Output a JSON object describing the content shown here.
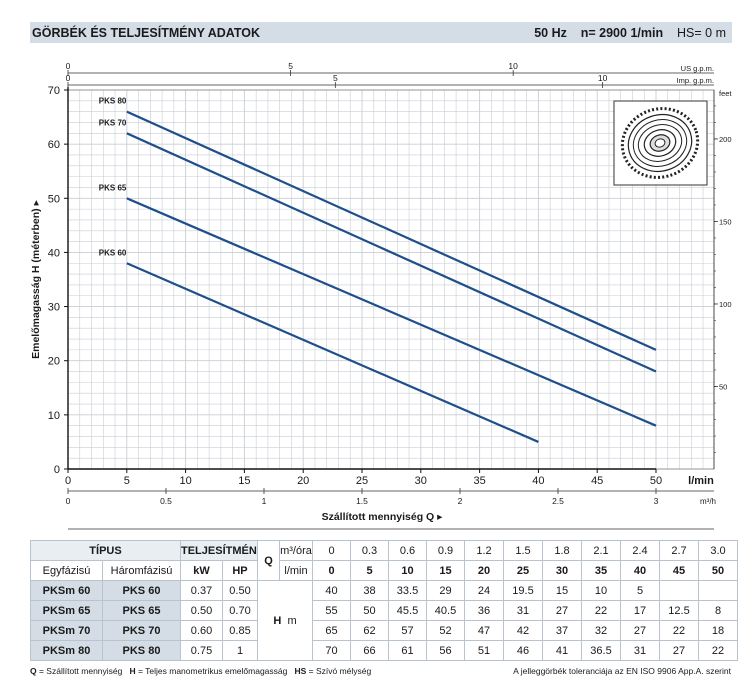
{
  "header": {
    "title": "GÖRBÉK ÉS TELJESÍTMÉNY ADATOK",
    "freq": "50 Hz",
    "speed": "n= 2900",
    "speed_unit": "1/min",
    "hs": "HS= 0 m"
  },
  "chart_data": {
    "type": "line",
    "xlabel": "Szállított mennyiség  Q",
    "ylabel": "Emelőmagasság  H  (méterben)",
    "x_unit_lmin": "l/min",
    "x_unit_m3h": "m³/h",
    "y_right_unit": "feet",
    "top_axis_us": "US g.p.m.",
    "top_axis_imp": "Imp. g.p.m.",
    "xlim": [
      0,
      50
    ],
    "ylim": [
      0,
      70
    ],
    "x_ticks_lmin": [
      0,
      5,
      10,
      15,
      20,
      25,
      30,
      35,
      40,
      45,
      50
    ],
    "y_ticks": [
      0,
      10,
      20,
      30,
      40,
      50,
      60,
      70
    ],
    "x_ticks_m3h": [
      "0",
      "0.5",
      "1",
      "1.5",
      "2",
      "2.5",
      "3"
    ],
    "us_gpm_ticks": [
      "0",
      "5",
      "10"
    ],
    "imp_gpm_ticks": [
      "0",
      "5",
      "10"
    ],
    "feet_ticks": [
      "50",
      "100",
      "150",
      "200"
    ],
    "series": [
      {
        "name": "PKS 80",
        "x": [
          5,
          50
        ],
        "y": [
          66,
          22
        ]
      },
      {
        "name": "PKS 70",
        "x": [
          5,
          50
        ],
        "y": [
          62,
          18
        ]
      },
      {
        "name": "PKS 65",
        "x": [
          5,
          50
        ],
        "y": [
          50,
          8
        ]
      },
      {
        "name": "PKS 60",
        "x": [
          5,
          40
        ],
        "y": [
          38,
          5
        ]
      }
    ],
    "grid": true
  },
  "colors": {
    "line": "#1e4f8a",
    "header_bg": "#d4dde6",
    "grid": "#c9ced4"
  },
  "impeller_icon": "peripheral-impeller-icon",
  "table": {
    "h_tipus": "TÍPUS",
    "h_teljesitmeny": "TELJESÍTMÉNY",
    "h_q": "Q",
    "h_m3ora": "m³/óra",
    "h_lmin": "l/min",
    "h_egyfazisu": "Egyfázisú",
    "h_haromfazisu": "Háromfázisú",
    "h_kw": "kW",
    "h_hp": "HP",
    "h_hm": "H",
    "h_hm_unit": "m",
    "q_m3": [
      "0",
      "0.3",
      "0.6",
      "0.9",
      "1.2",
      "1.5",
      "1.8",
      "2.1",
      "2.4",
      "2.7",
      "3.0"
    ],
    "q_lmin": [
      "0",
      "5",
      "10",
      "15",
      "20",
      "25",
      "30",
      "35",
      "40",
      "45",
      "50"
    ],
    "rows": [
      {
        "single": "PKSm 60",
        "three": "PKS 60",
        "kw": "0.37",
        "hp": "0.50",
        "h": [
          "40",
          "38",
          "33.5",
          "29",
          "24",
          "19.5",
          "15",
          "10",
          "5",
          "",
          ""
        ]
      },
      {
        "single": "PKSm 65",
        "three": "PKS 65",
        "kw": "0.50",
        "hp": "0.70",
        "h": [
          "55",
          "50",
          "45.5",
          "40.5",
          "36",
          "31",
          "27",
          "22",
          "17",
          "12.5",
          "8"
        ]
      },
      {
        "single": "PKSm 70",
        "three": "PKS 70",
        "kw": "0.60",
        "hp": "0.85",
        "h": [
          "65",
          "62",
          "57",
          "52",
          "47",
          "42",
          "37",
          "32",
          "27",
          "22",
          "18"
        ]
      },
      {
        "single": "PKSm 80",
        "three": "PKS 80",
        "kw": "0.75",
        "hp": "1",
        "h": [
          "70",
          "66",
          "61",
          "56",
          "51",
          "46",
          "41",
          "36.5",
          "31",
          "27",
          "22"
        ]
      }
    ]
  },
  "footer": {
    "q_key": "Q",
    "q_desc": " = Szállított mennyiség",
    "h_key": "H",
    "h_desc": " = Teljes manometrikus emelőmagasság",
    "hs_key": "HS",
    "hs_desc": " = Szívó mélység",
    "note": "A jelleggörbék toleranciája az EN ISO 9906 App.A. szerint"
  }
}
